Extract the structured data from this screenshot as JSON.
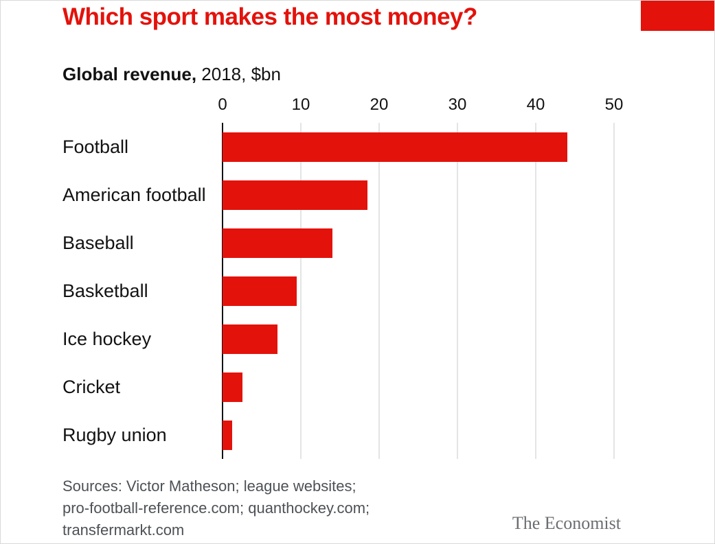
{
  "title": "Which sport makes the most money?",
  "subtitle": {
    "bold": "Global revenue,",
    "rest": " 2018, $bn"
  },
  "chart_data": {
    "type": "bar",
    "orientation": "horizontal",
    "title": "Which sport makes the most money?",
    "subtitle": "Global revenue, 2018, $bn",
    "categories": [
      "Football",
      "American football",
      "Baseball",
      "Basketball",
      "Ice hockey",
      "Cricket",
      "Rugby union"
    ],
    "values": [
      44,
      18.5,
      14,
      9.5,
      7,
      2.5,
      1.2
    ],
    "xlabel": "",
    "ylabel": "",
    "xlim": [
      0,
      50
    ],
    "xticks": [
      0,
      10,
      20,
      30,
      40,
      50
    ],
    "grid": true,
    "legend": "none",
    "bar_color": "#e3120b"
  },
  "footer": {
    "sources_lines": [
      "Sources: Victor Matheson; league websites;",
      "pro-football-reference.com; quanthockey.com;",
      "transfermarkt.com"
    ],
    "brand": "The Economist"
  },
  "colors": {
    "accent_red": "#e3120b",
    "gridline": "#c7c9cb",
    "axis": "#121212",
    "text": "#121212",
    "sources_text": "#4d5155",
    "brand_text": "#6b6e71"
  }
}
